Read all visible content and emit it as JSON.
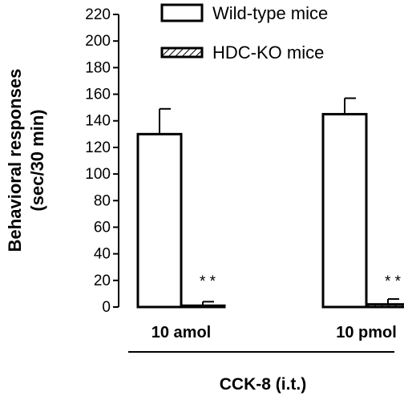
{
  "chart_data": {
    "type": "bar",
    "ylabel_line1": "Behavioral responses",
    "ylabel_line2": "(sec/30 min)",
    "xlabel": "CCK-8 (i.t.)",
    "ylim": [
      0,
      220
    ],
    "yticks": [
      0,
      20,
      40,
      60,
      80,
      100,
      120,
      140,
      160,
      180,
      200,
      220
    ],
    "categories": [
      "10 amol",
      "10 pmol"
    ],
    "series": [
      {
        "name": "Wild-type mice",
        "pattern": "open",
        "values": [
          130,
          145
        ],
        "errors": [
          19,
          12
        ]
      },
      {
        "name": "HDC-KO mice",
        "pattern": "hatched",
        "values": [
          1,
          2
        ],
        "errors": [
          3,
          4
        ]
      }
    ],
    "annotations": [
      "* *",
      "* *"
    ],
    "legend_position": "top",
    "grid": false,
    "colors": {
      "stroke": "#000000",
      "fill": "#ffffff"
    }
  }
}
